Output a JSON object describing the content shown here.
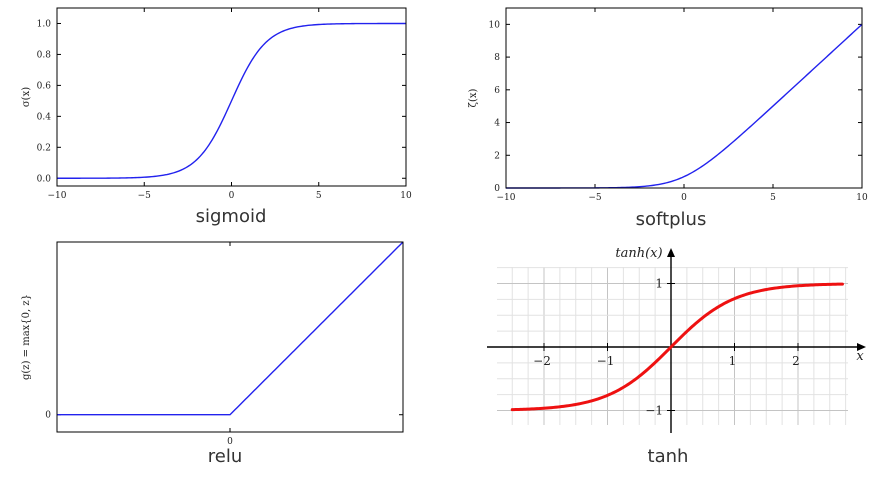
{
  "chart_data": [
    {
      "type": "line",
      "caption": "sigmoid",
      "ylabel": "σ(x)",
      "xlim": [
        -10,
        10
      ],
      "ylim": [
        -0.05,
        1.1
      ],
      "xticks": [
        -10,
        -5,
        0,
        5,
        10
      ],
      "xtick_labels": [
        "−10",
        "−5",
        "0",
        "5",
        "10"
      ],
      "yticks": [
        0.0,
        0.2,
        0.4,
        0.6,
        0.8,
        1.0
      ],
      "ytick_labels": [
        "0.0",
        "0.2",
        "0.4",
        "0.6",
        "0.8",
        "1.0"
      ],
      "function": "sigmoid",
      "color": "#2222ee",
      "grid": false
    },
    {
      "type": "line",
      "caption": "softplus",
      "ylabel": "ζ(x)",
      "xlim": [
        -10,
        10
      ],
      "ylim": [
        0,
        11
      ],
      "xticks": [
        -10,
        -5,
        0,
        5,
        10
      ],
      "xtick_labels": [
        "−10",
        "−5",
        "0",
        "5",
        "10"
      ],
      "yticks": [
        0,
        2,
        4,
        6,
        8,
        10
      ],
      "ytick_labels": [
        "0",
        "2",
        "4",
        "6",
        "8",
        "10"
      ],
      "function": "softplus",
      "color": "#2222ee",
      "grid": false
    },
    {
      "type": "line",
      "caption": "relu",
      "ylabel": "g(z) = max{0, z}",
      "xlim": [
        -1,
        1
      ],
      "ylim": [
        -0.1,
        1.0
      ],
      "xticks": [
        0
      ],
      "xtick_labels": [
        "0"
      ],
      "yticks": [
        0
      ],
      "ytick_labels": [
        "0"
      ],
      "function": "relu",
      "color": "#2222ee",
      "grid": false
    },
    {
      "type": "line",
      "caption": "tanh",
      "ylabel": "tanh(x)",
      "xlabel": "x",
      "xlim": [
        -2.5,
        2.7
      ],
      "ylim": [
        -1.3,
        1.3
      ],
      "xticks": [
        -2,
        -1,
        1,
        2
      ],
      "xtick_labels": [
        "−2",
        "−1",
        "1",
        "2"
      ],
      "yticks": [
        -1,
        1
      ],
      "ytick_labels": [
        "−1",
        "1"
      ],
      "function": "tanh",
      "color": "#ee1111",
      "grid": true
    }
  ]
}
